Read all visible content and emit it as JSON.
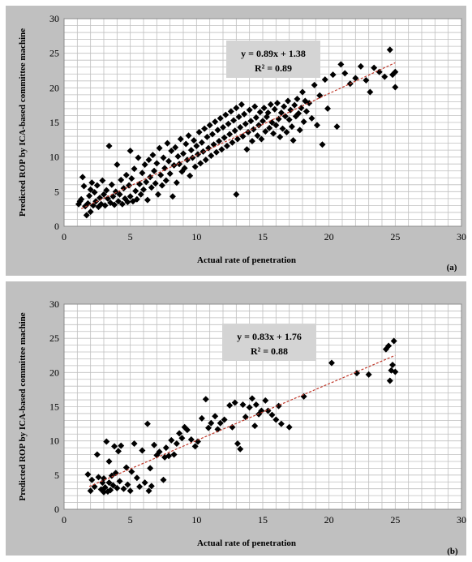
{
  "chart_data": [
    {
      "type": "scatter",
      "panel_label": "(a)",
      "xlabel": "Actual rate of penetration",
      "ylabel": "Predicted ROP by ICA-based committee machine",
      "xlim": [
        0,
        30
      ],
      "ylim": [
        0,
        30
      ],
      "xticks": [
        0,
        5,
        10,
        15,
        20,
        25,
        30
      ],
      "yticks": [
        0,
        5,
        10,
        15,
        20,
        25,
        30
      ],
      "grid": true,
      "minor_grid_step": 1,
      "trendline": {
        "slope": 0.89,
        "intercept": 1.38,
        "x_range": [
          1.3,
          25
        ]
      },
      "annotation": {
        "equation": "y = 0.89x + 1.38",
        "r2": "R² = 0.89"
      },
      "colors": {
        "marker": "#000000",
        "trendline": "#c0392b",
        "panel": "#c0c0c0",
        "plot_bg": "#ffffff",
        "grid": "#bfbfbf",
        "annotation_bg": "#d4d4d4"
      },
      "points": [
        [
          1.1,
          3.2
        ],
        [
          1.2,
          3.6
        ],
        [
          1.3,
          3.9
        ],
        [
          1.4,
          7.1
        ],
        [
          1.5,
          5.8
        ],
        [
          1.6,
          2.9
        ],
        [
          1.7,
          1.6
        ],
        [
          1.8,
          3.3
        ],
        [
          1.9,
          4.4
        ],
        [
          2.0,
          2.1
        ],
        [
          2.0,
          5.3
        ],
        [
          2.1,
          6.3
        ],
        [
          2.2,
          3.0
        ],
        [
          2.3,
          4.9
        ],
        [
          2.4,
          3.6
        ],
        [
          2.5,
          5.9
        ],
        [
          2.6,
          2.8
        ],
        [
          2.7,
          4.1
        ],
        [
          2.8,
          3.2
        ],
        [
          2.9,
          6.6
        ],
        [
          3.0,
          4.6
        ],
        [
          3.1,
          3.0
        ],
        [
          3.2,
          5.2
        ],
        [
          3.3,
          4.0
        ],
        [
          3.4,
          11.6
        ],
        [
          3.5,
          3.4
        ],
        [
          3.6,
          6.0
        ],
        [
          3.7,
          4.3
        ],
        [
          3.8,
          3.1
        ],
        [
          3.9,
          5.0
        ],
        [
          4.0,
          8.9
        ],
        [
          4.1,
          3.6
        ],
        [
          4.2,
          4.6
        ],
        [
          4.3,
          6.7
        ],
        [
          4.4,
          3.2
        ],
        [
          4.5,
          5.5
        ],
        [
          4.6,
          4.0
        ],
        [
          4.7,
          7.4
        ],
        [
          4.8,
          3.5
        ],
        [
          4.9,
          5.9
        ],
        [
          5.0,
          4.3
        ],
        [
          5.0,
          10.9
        ],
        [
          5.1,
          6.9
        ],
        [
          5.2,
          3.6
        ],
        [
          5.3,
          8.3
        ],
        [
          5.4,
          5.1
        ],
        [
          5.5,
          3.9
        ],
        [
          5.6,
          9.9
        ],
        [
          5.7,
          6.1
        ],
        [
          5.8,
          4.6
        ],
        [
          5.9,
          7.7
        ],
        [
          6.0,
          5.3
        ],
        [
          6.1,
          8.9
        ],
        [
          6.2,
          6.4
        ],
        [
          6.3,
          3.8
        ],
        [
          6.4,
          9.6
        ],
        [
          6.5,
          7.1
        ],
        [
          6.6,
          5.6
        ],
        [
          6.7,
          10.3
        ],
        [
          6.8,
          8.0
        ],
        [
          6.9,
          6.2
        ],
        [
          7.0,
          9.1
        ],
        [
          7.1,
          4.6
        ],
        [
          7.2,
          11.3
        ],
        [
          7.3,
          7.4
        ],
        [
          7.4,
          5.9
        ],
        [
          7.5,
          9.9
        ],
        [
          7.6,
          8.4
        ],
        [
          7.7,
          6.6
        ],
        [
          7.8,
          12.0
        ],
        [
          7.9,
          9.4
        ],
        [
          8.0,
          7.6
        ],
        [
          8.1,
          10.9
        ],
        [
          8.2,
          4.3
        ],
        [
          8.3,
          8.8
        ],
        [
          8.4,
          11.4
        ],
        [
          8.5,
          6.3
        ],
        [
          8.6,
          10.1
        ],
        [
          8.7,
          9.0
        ],
        [
          8.8,
          12.6
        ],
        [
          8.9,
          7.9
        ],
        [
          9.0,
          10.5
        ],
        [
          9.1,
          8.4
        ],
        [
          9.2,
          11.9
        ],
        [
          9.3,
          9.6
        ],
        [
          9.4,
          13.1
        ],
        [
          9.5,
          7.3
        ],
        [
          9.6,
          11.0
        ],
        [
          9.7,
          9.9
        ],
        [
          9.8,
          12.4
        ],
        [
          9.9,
          8.6
        ],
        [
          10.0,
          11.6
        ],
        [
          10.1,
          10.4
        ],
        [
          10.2,
          13.6
        ],
        [
          10.3,
          9.1
        ],
        [
          10.4,
          12.1
        ],
        [
          10.5,
          10.8
        ],
        [
          10.6,
          14.1
        ],
        [
          10.7,
          9.6
        ],
        [
          10.8,
          12.9
        ],
        [
          10.9,
          11.3
        ],
        [
          11.0,
          14.6
        ],
        [
          11.1,
          10.2
        ],
        [
          11.2,
          13.3
        ],
        [
          11.3,
          11.8
        ],
        [
          11.4,
          15.1
        ],
        [
          11.5,
          10.7
        ],
        [
          11.6,
          13.9
        ],
        [
          11.7,
          12.3
        ],
        [
          11.8,
          15.6
        ],
        [
          11.9,
          11.1
        ],
        [
          12.0,
          14.3
        ],
        [
          12.1,
          12.8
        ],
        [
          12.2,
          16.1
        ],
        [
          12.3,
          11.6
        ],
        [
          12.4,
          14.8
        ],
        [
          12.5,
          13.3
        ],
        [
          12.6,
          16.6
        ],
        [
          12.7,
          12.1
        ],
        [
          12.8,
          15.3
        ],
        [
          12.9,
          13.8
        ],
        [
          13.0,
          4.6
        ],
        [
          13.0,
          17.1
        ],
        [
          13.1,
          12.6
        ],
        [
          13.2,
          15.8
        ],
        [
          13.3,
          14.3
        ],
        [
          13.4,
          17.6
        ],
        [
          13.5,
          13.0
        ],
        [
          13.6,
          16.2
        ],
        [
          13.7,
          14.8
        ],
        [
          13.8,
          11.1
        ],
        [
          13.9,
          13.6
        ],
        [
          14.0,
          16.8
        ],
        [
          14.1,
          15.2
        ],
        [
          14.2,
          12.3
        ],
        [
          14.3,
          14.0
        ],
        [
          14.4,
          17.3
        ],
        [
          14.5,
          15.7
        ],
        [
          14.6,
          13.1
        ],
        [
          14.7,
          14.6
        ],
        [
          14.8,
          16.5
        ],
        [
          14.9,
          12.6
        ],
        [
          15.0,
          15.2
        ],
        [
          15.1,
          17.1
        ],
        [
          15.2,
          13.7
        ],
        [
          15.3,
          15.8
        ],
        [
          15.4,
          16.4
        ],
        [
          15.5,
          14.2
        ],
        [
          15.6,
          17.6
        ],
        [
          15.7,
          15.0
        ],
        [
          15.8,
          13.4
        ],
        [
          15.9,
          16.9
        ],
        [
          16.0,
          14.6
        ],
        [
          16.1,
          17.8
        ],
        [
          16.2,
          15.5
        ],
        [
          16.3,
          12.9
        ],
        [
          16.4,
          16.4
        ],
        [
          16.5,
          14.1
        ],
        [
          16.6,
          17.3
        ],
        [
          16.7,
          15.9
        ],
        [
          16.8,
          13.6
        ],
        [
          16.9,
          18.1
        ],
        [
          17.0,
          15.4
        ],
        [
          17.1,
          16.8
        ],
        [
          17.2,
          14.4
        ],
        [
          17.3,
          12.4
        ],
        [
          17.4,
          17.5
        ],
        [
          17.5,
          15.9
        ],
        [
          17.6,
          18.4
        ],
        [
          17.7,
          16.3
        ],
        [
          17.8,
          13.9
        ],
        [
          17.9,
          17.1
        ],
        [
          18.0,
          19.4
        ],
        [
          18.1,
          15.1
        ],
        [
          18.2,
          18.1
        ],
        [
          18.3,
          16.6
        ],
        [
          18.5,
          17.8
        ],
        [
          18.7,
          15.6
        ],
        [
          18.9,
          20.4
        ],
        [
          19.1,
          14.6
        ],
        [
          19.3,
          18.9
        ],
        [
          19.5,
          11.8
        ],
        [
          19.7,
          21.2
        ],
        [
          19.9,
          17.0
        ],
        [
          20.3,
          21.9
        ],
        [
          20.6,
          14.4
        ],
        [
          20.9,
          23.4
        ],
        [
          21.2,
          22.1
        ],
        [
          21.6,
          20.6
        ],
        [
          22.0,
          21.4
        ],
        [
          22.4,
          23.1
        ],
        [
          22.8,
          21.1
        ],
        [
          23.1,
          19.4
        ],
        [
          23.4,
          22.9
        ],
        [
          23.8,
          22.3
        ],
        [
          24.2,
          21.6
        ],
        [
          24.6,
          25.5
        ],
        [
          24.8,
          21.9
        ],
        [
          25.0,
          20.1
        ],
        [
          25.0,
          22.3
        ]
      ]
    },
    {
      "type": "scatter",
      "panel_label": "(b)",
      "xlabel": "Actual rate of penetration",
      "ylabel": "Predicted ROP by ICA-based committee machine",
      "xlim": [
        0,
        30
      ],
      "ylim": [
        0,
        30
      ],
      "xticks": [
        0,
        5,
        10,
        15,
        20,
        25,
        30
      ],
      "yticks": [
        0,
        5,
        10,
        15,
        20,
        25,
        30
      ],
      "grid": true,
      "minor_grid_step": 1,
      "trendline": {
        "slope": 0.83,
        "intercept": 1.76,
        "x_range": [
          1.9,
          25
        ]
      },
      "annotation": {
        "equation": "y = 0.83x + 1.76",
        "r2": "R² = 0.88"
      },
      "colors": {
        "marker": "#000000",
        "trendline": "#c0392b",
        "panel": "#c0c0c0",
        "plot_bg": "#ffffff",
        "grid": "#bfbfbf",
        "annotation_bg": "#d4d4d4"
      },
      "points": [
        [
          1.8,
          5.1
        ],
        [
          2.0,
          2.7
        ],
        [
          2.1,
          4.3
        ],
        [
          2.3,
          3.3
        ],
        [
          2.5,
          8.0
        ],
        [
          2.6,
          4.7
        ],
        [
          2.8,
          2.9
        ],
        [
          2.9,
          3.9
        ],
        [
          3.0,
          2.5
        ],
        [
          3.0,
          4.5
        ],
        [
          3.1,
          3.2
        ],
        [
          3.2,
          9.9
        ],
        [
          3.3,
          2.6
        ],
        [
          3.4,
          7.0
        ],
        [
          3.4,
          3.9
        ],
        [
          3.5,
          2.8
        ],
        [
          3.6,
          4.9
        ],
        [
          3.7,
          3.5
        ],
        [
          3.8,
          9.2
        ],
        [
          3.9,
          5.3
        ],
        [
          4.0,
          3.1
        ],
        [
          4.1,
          8.5
        ],
        [
          4.2,
          4.1
        ],
        [
          4.3,
          9.3
        ],
        [
          4.5,
          3.0
        ],
        [
          4.7,
          6.1
        ],
        [
          4.8,
          3.6
        ],
        [
          5.0,
          2.7
        ],
        [
          5.1,
          5.5
        ],
        [
          5.3,
          9.6
        ],
        [
          5.5,
          4.6
        ],
        [
          5.7,
          3.3
        ],
        [
          5.9,
          8.6
        ],
        [
          6.1,
          3.9
        ],
        [
          6.3,
          12.5
        ],
        [
          6.4,
          2.7
        ],
        [
          6.5,
          6.0
        ],
        [
          6.6,
          3.4
        ],
        [
          6.8,
          9.4
        ],
        [
          7.0,
          7.9
        ],
        [
          7.2,
          8.4
        ],
        [
          7.5,
          4.3
        ],
        [
          7.6,
          7.6
        ],
        [
          7.7,
          9.0
        ],
        [
          7.9,
          7.8
        ],
        [
          8.1,
          10.1
        ],
        [
          8.3,
          8.0
        ],
        [
          8.5,
          9.6
        ],
        [
          8.7,
          11.1
        ],
        [
          8.9,
          10.4
        ],
        [
          9.1,
          12.0
        ],
        [
          9.3,
          11.6
        ],
        [
          9.6,
          10.2
        ],
        [
          9.9,
          9.2
        ],
        [
          10.1,
          9.9
        ],
        [
          10.4,
          13.3
        ],
        [
          10.7,
          16.1
        ],
        [
          10.9,
          11.9
        ],
        [
          11.1,
          12.6
        ],
        [
          11.4,
          13.6
        ],
        [
          11.6,
          11.7
        ],
        [
          11.8,
          12.6
        ],
        [
          12.1,
          13.1
        ],
        [
          12.5,
          15.2
        ],
        [
          12.7,
          12.0
        ],
        [
          12.9,
          15.6
        ],
        [
          13.1,
          9.6
        ],
        [
          13.3,
          8.8
        ],
        [
          13.5,
          15.3
        ],
        [
          13.7,
          13.5
        ],
        [
          14.0,
          14.9
        ],
        [
          14.2,
          16.2
        ],
        [
          14.4,
          12.2
        ],
        [
          14.5,
          15.3
        ],
        [
          14.7,
          13.9
        ],
        [
          14.9,
          14.4
        ],
        [
          15.2,
          15.9
        ],
        [
          15.4,
          14.4
        ],
        [
          15.7,
          13.8
        ],
        [
          16.0,
          13.1
        ],
        [
          16.2,
          15.1
        ],
        [
          16.4,
          12.5
        ],
        [
          17.0,
          12.0
        ],
        [
          18.1,
          16.5
        ],
        [
          20.2,
          21.4
        ],
        [
          22.1,
          19.9
        ],
        [
          23.0,
          19.7
        ],
        [
          24.3,
          23.4
        ],
        [
          24.5,
          23.9
        ],
        [
          24.6,
          18.8
        ],
        [
          24.7,
          20.3
        ],
        [
          24.8,
          21.1
        ],
        [
          24.9,
          24.6
        ],
        [
          25.0,
          20.1
        ]
      ]
    }
  ]
}
